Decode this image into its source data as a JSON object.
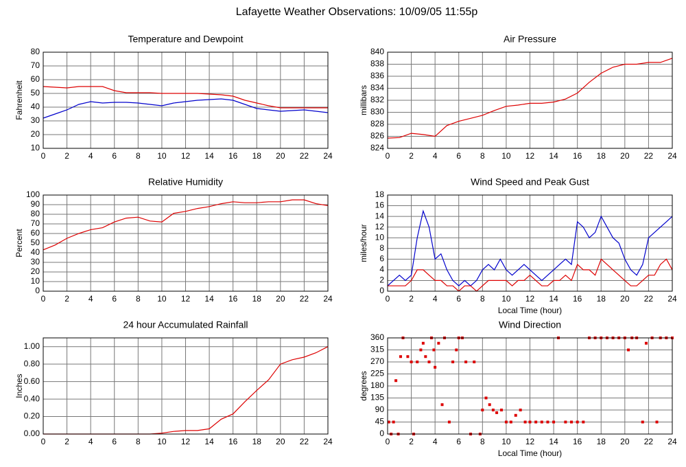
{
  "title": "Lafayette Weather Observations: 10/09/05 11:55p",
  "chart_data": [
    {
      "type": "line",
      "title": "Temperature and Dewpoint",
      "ylabel": "Fahrenheit",
      "x": [
        0,
        1,
        2,
        3,
        4,
        5,
        6,
        7,
        8,
        9,
        10,
        11,
        12,
        13,
        14,
        15,
        16,
        17,
        18,
        19,
        20,
        21,
        22,
        23,
        24
      ],
      "series": [
        {
          "color": "#dd0000",
          "values": [
            55,
            54.5,
            54,
            55,
            55,
            55,
            52,
            50.5,
            50.5,
            50.5,
            50,
            50,
            50,
            50,
            49.5,
            49,
            48,
            45,
            43,
            41,
            39.5,
            39.5,
            39.5,
            39.5,
            39.5
          ]
        },
        {
          "color": "#0000cc",
          "values": [
            32,
            35,
            38,
            42,
            44,
            43,
            43.5,
            43.5,
            43,
            42,
            41,
            43,
            44,
            45,
            45.5,
            46,
            45,
            42,
            39,
            38,
            37,
            37.5,
            38,
            37,
            36
          ]
        }
      ],
      "xlim": [
        0,
        24
      ],
      "xticks": [
        0,
        2,
        4,
        6,
        8,
        10,
        12,
        14,
        16,
        18,
        20,
        22,
        24
      ],
      "ylim": [
        10,
        80
      ],
      "yticks": [
        10,
        20,
        30,
        40,
        50,
        60,
        70,
        80
      ],
      "grid": true
    },
    {
      "type": "line",
      "title": "Air Pressure",
      "ylabel": "millibars",
      "x": [
        0,
        1,
        2,
        3,
        4,
        5,
        6,
        7,
        8,
        9,
        10,
        11,
        12,
        13,
        14,
        15,
        16,
        17,
        18,
        19,
        20,
        21,
        22,
        23,
        24
      ],
      "series": [
        {
          "color": "#dd0000",
          "values": [
            825.7,
            825.8,
            826.5,
            826.3,
            826,
            827.8,
            828.5,
            829,
            829.5,
            830.3,
            831,
            831.2,
            831.5,
            831.5,
            831.7,
            832.2,
            833.2,
            835,
            836.5,
            837.5,
            838,
            838,
            838.3,
            838.3,
            839
          ]
        }
      ],
      "xlim": [
        0,
        24
      ],
      "xticks": [
        0,
        2,
        4,
        6,
        8,
        10,
        12,
        14,
        16,
        18,
        20,
        22,
        24
      ],
      "ylim": [
        824,
        840
      ],
      "yticks": [
        824,
        826,
        828,
        830,
        832,
        834,
        836,
        838,
        840
      ],
      "grid": true
    },
    {
      "type": "line",
      "title": "Relative Humidity",
      "ylabel": "Percent",
      "x": [
        0,
        1,
        2,
        3,
        4,
        5,
        6,
        7,
        8,
        9,
        10,
        11,
        12,
        13,
        14,
        15,
        16,
        17,
        18,
        19,
        20,
        21,
        22,
        23,
        24
      ],
      "series": [
        {
          "color": "#dd0000",
          "values": [
            43,
            48,
            55,
            60,
            64,
            66,
            72,
            76,
            77,
            73,
            72,
            81,
            83,
            86,
            88,
            91,
            93,
            92,
            92,
            93,
            93,
            95,
            95,
            91,
            89
          ]
        }
      ],
      "xlim": [
        0,
        24
      ],
      "xticks": [
        0,
        2,
        4,
        6,
        8,
        10,
        12,
        14,
        16,
        18,
        20,
        22,
        24
      ],
      "ylim": [
        0,
        100
      ],
      "yticks": [
        0,
        10,
        20,
        30,
        40,
        50,
        60,
        70,
        80,
        90,
        100
      ],
      "grid": true
    },
    {
      "type": "line",
      "title": "Wind Speed and Peak Gust",
      "ylabel": "miles/hour",
      "xlabel": "Local Time (hour)",
      "x": [
        0,
        0.5,
        1,
        1.5,
        2,
        2.5,
        3,
        3.5,
        4,
        4.5,
        5,
        5.5,
        6,
        6.5,
        7,
        7.5,
        8,
        8.5,
        9,
        9.5,
        10,
        10.5,
        11,
        11.5,
        12,
        12.5,
        13,
        13.5,
        14,
        14.5,
        15,
        15.5,
        16,
        16.5,
        17,
        17.5,
        18,
        18.5,
        19,
        19.5,
        20,
        20.5,
        21,
        21.5,
        22,
        22.5,
        23,
        23.5,
        24
      ],
      "series": [
        {
          "color": "#0000cc",
          "values": [
            1,
            2,
            3,
            2,
            3,
            10,
            15,
            12,
            6,
            7,
            4,
            2,
            1,
            2,
            1,
            2,
            4,
            5,
            4,
            6,
            4,
            3,
            4,
            5,
            4,
            3,
            2,
            3,
            4,
            5,
            6,
            5,
            13,
            12,
            10,
            11,
            14,
            12,
            10,
            9,
            6,
            4,
            3,
            5,
            10,
            11,
            12,
            13,
            14
          ]
        },
        {
          "color": "#dd0000",
          "values": [
            1,
            1,
            1,
            1,
            2,
            4,
            4,
            3,
            2,
            2,
            1,
            1,
            0,
            1,
            1,
            0,
            1,
            2,
            2,
            2,
            2,
            1,
            2,
            2,
            3,
            2,
            1,
            1,
            2,
            2,
            3,
            2,
            5,
            4,
            4,
            3,
            6,
            5,
            4,
            3,
            2,
            1,
            1,
            2,
            3,
            3,
            5,
            6,
            4
          ]
        }
      ],
      "xlim": [
        0,
        24
      ],
      "xticks": [
        0,
        2,
        4,
        6,
        8,
        10,
        12,
        14,
        16,
        18,
        20,
        22,
        24
      ],
      "ylim": [
        0,
        18
      ],
      "yticks": [
        0,
        2,
        4,
        6,
        8,
        10,
        12,
        14,
        16,
        18
      ],
      "grid": true
    },
    {
      "type": "line",
      "title": "24 hour Accumulated Rainfall",
      "ylabel": "Inches",
      "x": [
        0,
        1,
        2,
        3,
        4,
        5,
        6,
        7,
        8,
        9,
        10,
        11,
        12,
        13,
        14,
        15,
        16,
        17,
        18,
        19,
        20,
        21,
        22,
        23,
        24
      ],
      "series": [
        {
          "color": "#dd0000",
          "values": [
            0,
            0,
            0,
            0,
            0,
            0,
            0,
            0,
            0,
            0,
            0.01,
            0.03,
            0.04,
            0.04,
            0.06,
            0.17,
            0.23,
            0.37,
            0.5,
            0.62,
            0.8,
            0.85,
            0.88,
            0.93,
            1.0
          ]
        }
      ],
      "xlim": [
        0,
        24
      ],
      "xticks": [
        0,
        2,
        4,
        6,
        8,
        10,
        12,
        14,
        16,
        18,
        20,
        22,
        24
      ],
      "ylim": [
        0,
        1.1
      ],
      "yticks": [
        {
          "value": 0,
          "label": "0.00"
        },
        {
          "value": 0.2,
          "label": "0.20"
        },
        {
          "value": 0.4,
          "label": "0.40"
        },
        {
          "value": 0.6,
          "label": "0.60"
        },
        {
          "value": 0.8,
          "label": "0.80"
        },
        {
          "value": 1,
          "label": "1.00"
        }
      ],
      "grid": true
    },
    {
      "type": "scatter",
      "title": "Wind Direction",
      "ylabel": "degrees",
      "xlabel": "Local Time (hour)",
      "color": "#dd0000",
      "x": [
        0.1,
        0.3,
        0.5,
        0.7,
        0.9,
        1.1,
        1.3,
        1.7,
        2,
        2.2,
        2.5,
        2.8,
        3,
        3.2,
        3.5,
        3.7,
        3.9,
        4,
        4.3,
        4.6,
        4.8,
        5.2,
        5.5,
        5.8,
        6,
        6.3,
        6.6,
        7,
        7.3,
        7.8,
        8,
        8.3,
        8.6,
        8.9,
        9.2,
        9.6,
        10,
        10.4,
        10.8,
        11.2,
        11.6,
        12,
        12.5,
        13,
        13.5,
        14,
        14.4,
        15,
        15.5,
        16,
        16.5,
        17,
        17.5,
        18,
        18.5,
        19,
        19.5,
        20,
        20.3,
        20.6,
        21,
        21.5,
        21.8,
        22.3,
        22.7,
        23,
        23.5,
        24
      ],
      "values": [
        45,
        0,
        45,
        200,
        0,
        290,
        360,
        290,
        270,
        0,
        270,
        315,
        340,
        290,
        270,
        360,
        315,
        250,
        340,
        110,
        360,
        45,
        270,
        315,
        360,
        360,
        270,
        0,
        270,
        0,
        90,
        135,
        110,
        90,
        80,
        90,
        45,
        45,
        70,
        90,
        45,
        45,
        45,
        45,
        45,
        45,
        360,
        45,
        45,
        45,
        45,
        360,
        360,
        360,
        360,
        360,
        360,
        360,
        315,
        360,
        360,
        45,
        340,
        360,
        45,
        360,
        360,
        360
      ],
      "xlim": [
        0,
        24
      ],
      "xticks": [
        0,
        2,
        4,
        6,
        8,
        10,
        12,
        14,
        16,
        18,
        20,
        22,
        24
      ],
      "ylim": [
        0,
        360
      ],
      "yticks": [
        0,
        45,
        90,
        135,
        180,
        225,
        270,
        315,
        360
      ],
      "grid": true
    }
  ]
}
